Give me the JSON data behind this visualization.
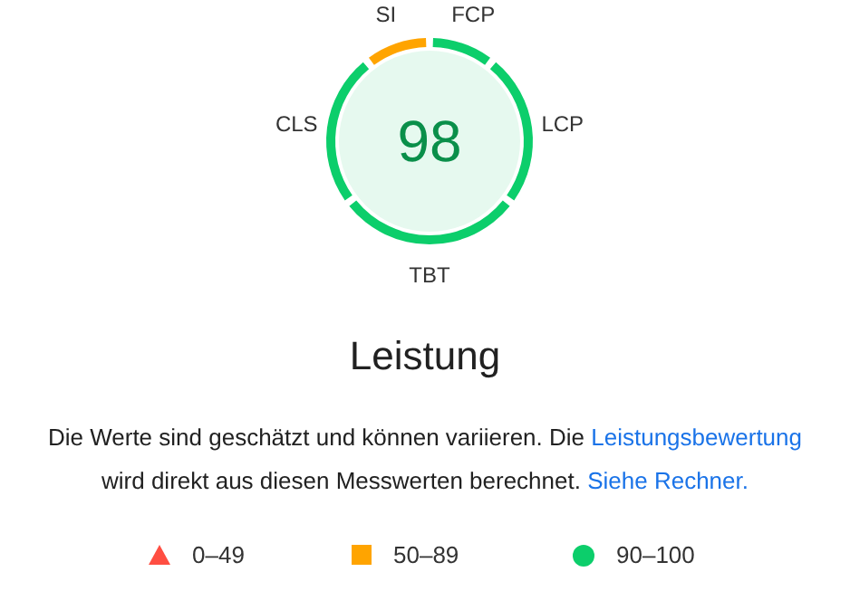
{
  "chart_data": {
    "type": "donut",
    "title": "Leistung",
    "categories": [
      "FCP",
      "LCP",
      "TBT",
      "CLS",
      "SI"
    ],
    "values": [
      10,
      25,
      30,
      25,
      10
    ],
    "colors": [
      "#0cce6b",
      "#0cce6b",
      "#0cce6b",
      "#0cce6b",
      "#ffa400"
    ],
    "annotations": [
      "98",
      "Die Werte sind geschätzt und können variieren. Die",
      "Leistungsbewertung",
      "wird direkt aus diesen Messwerten berechnet.",
      "Siehe Rechner.",
      "0–49",
      "50–89",
      "90–100"
    ]
  }
}
